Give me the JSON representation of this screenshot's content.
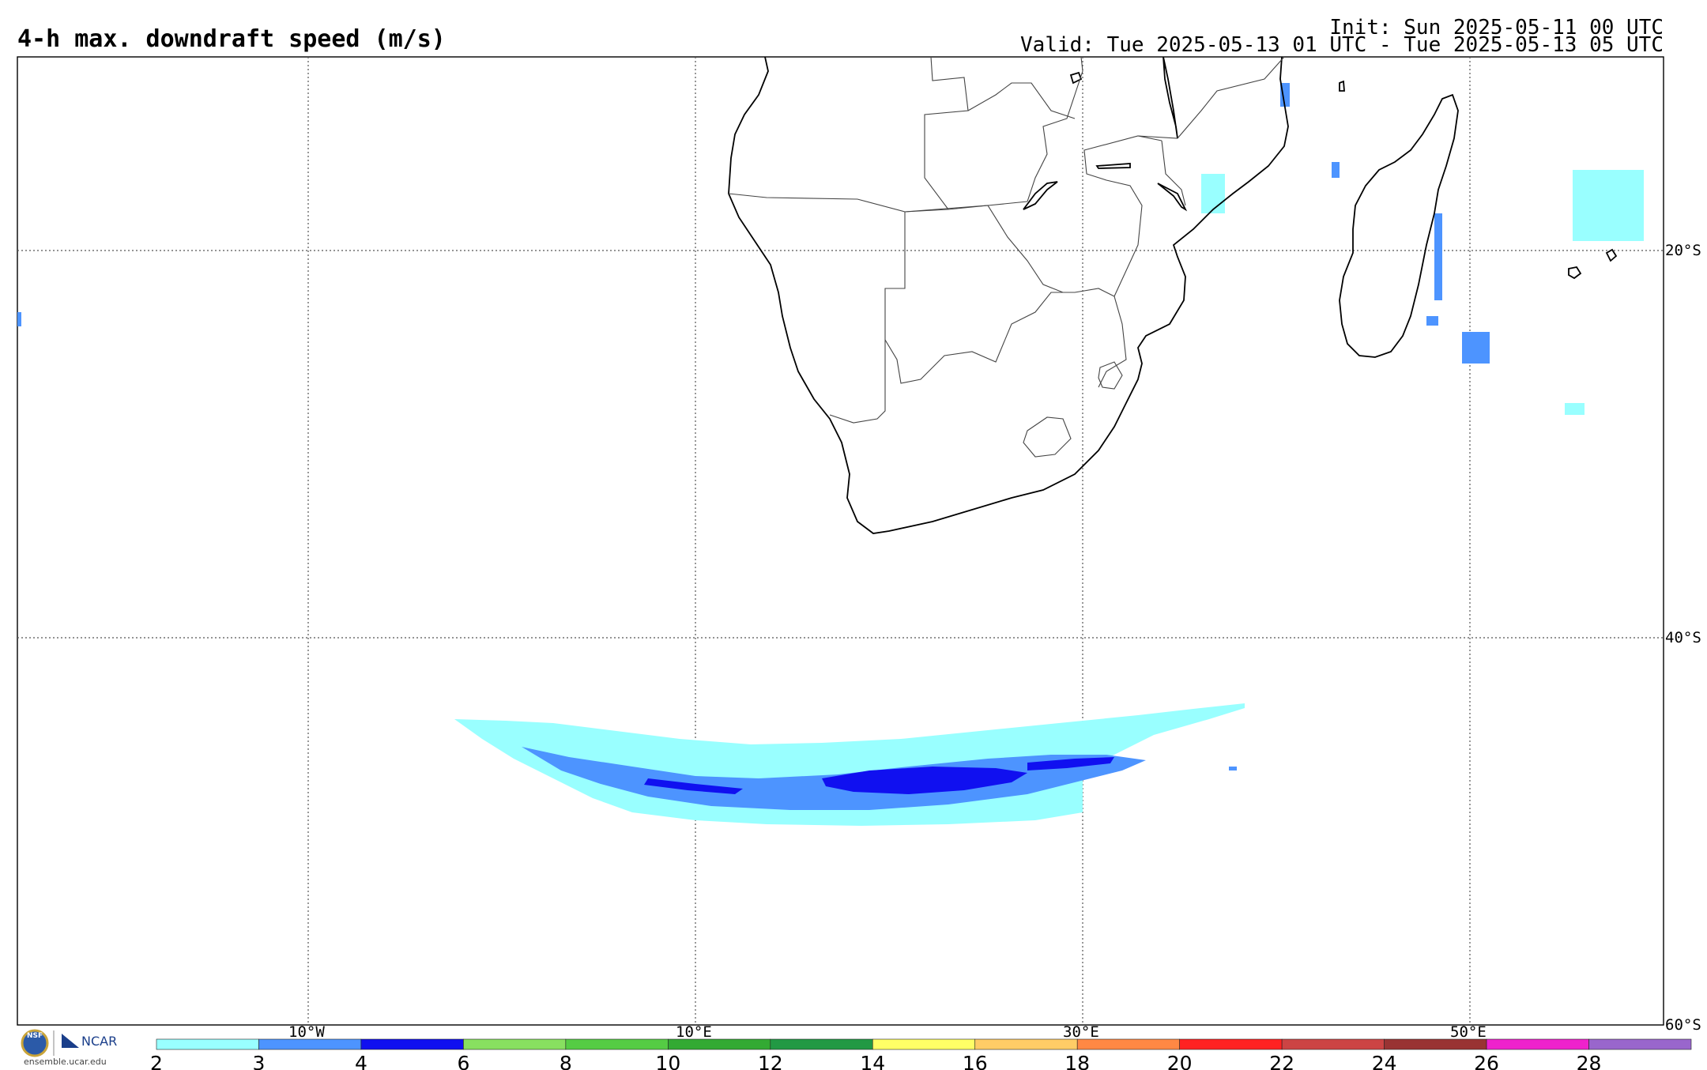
{
  "header": {
    "title": "4-h max. downdraft speed (m/s)",
    "init": "Init: Sun 2025-05-11 00 UTC",
    "valid": "Valid: Tue 2025-05-13 01 UTC - Tue 2025-05-13 05 UTC"
  },
  "map": {
    "projection": "equirectangular",
    "lon_range": [
      -25,
      60
    ],
    "lat_range": [
      -60,
      -10
    ],
    "grid": true,
    "lon_labels": [
      "10°W",
      "10°E",
      "30°E",
      "50°E"
    ],
    "lat_labels": [
      "20°S",
      "40°S",
      "60°S"
    ],
    "region": "Southern Africa and South Atlantic / Indian Ocean",
    "features": [
      "coastlines",
      "country borders",
      "Madagascar",
      "Lesotho"
    ],
    "colors": {
      "border": "#000000",
      "grid": "#555555",
      "light": "#99ffff",
      "mid": "#4d94ff",
      "strong": "#1010f0"
    }
  },
  "colorbar": {
    "ticks": [
      "2",
      "3",
      "4",
      "6",
      "8",
      "10",
      "12",
      "14",
      "16",
      "18",
      "20",
      "22",
      "24",
      "26",
      "28"
    ],
    "colors": [
      "#99ffff",
      "#4d94ff",
      "#1010f0",
      "#88e060",
      "#55cc44",
      "#33aa33",
      "#229944",
      "#ffff66",
      "#ffcc66",
      "#ff8844",
      "#ff2222",
      "#cc4444",
      "#993333",
      "#ee22cc",
      "#9966cc"
    ]
  },
  "logo": {
    "nsf": "NSF",
    "ncar": "NCAR",
    "url": "ensemble.ucar.edu"
  }
}
